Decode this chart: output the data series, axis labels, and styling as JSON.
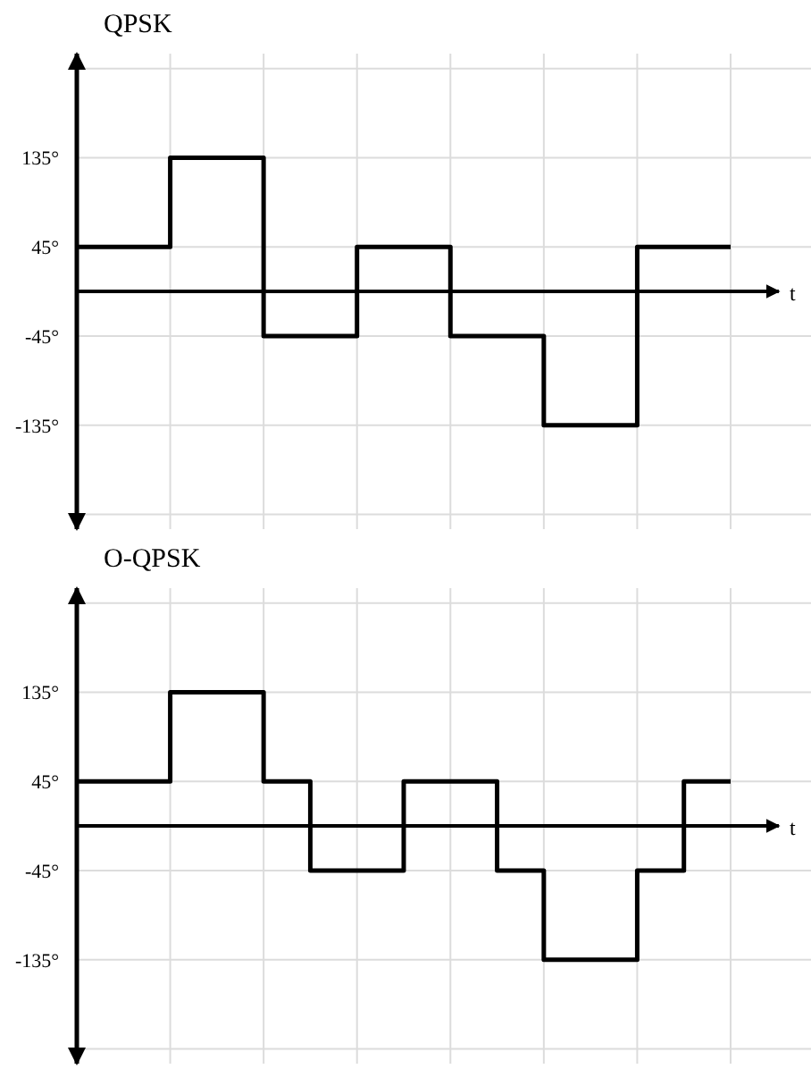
{
  "chart_data": [
    {
      "type": "step",
      "title": "QPSK",
      "xlabel": "t",
      "categories": [
        null,
        null,
        null,
        null,
        null,
        null,
        null,
        null
      ],
      "series": [
        {
          "color": "#000000",
          "values": [
            45,
            135,
            -45,
            45,
            -45,
            -135,
            45,
            45
          ]
        }
      ],
      "ylim": [
        -240,
        240
      ],
      "yticks": [
        {
          "value": -225,
          "label": null
        },
        {
          "value": -135,
          "label": "-135°"
        },
        {
          "value": -45,
          "label": "-45°"
        },
        {
          "value": 45,
          "label": "45°"
        },
        {
          "value": 135,
          "label": "135°"
        },
        {
          "value": 225,
          "label": null
        }
      ],
      "grid": true
    },
    {
      "type": "step",
      "title": "O-QPSK",
      "xlabel": "t",
      "categories": [
        null,
        null,
        null,
        null,
        null,
        null,
        null,
        null,
        null,
        null,
        null,
        null,
        null,
        null,
        null
      ],
      "series": [
        {
          "color": "#000000",
          "values": [
            45,
            45,
            135,
            135,
            45,
            -45,
            -45,
            45,
            45,
            -45,
            -135,
            -135,
            -45,
            45,
            45
          ]
        }
      ],
      "ylim": [
        -240,
        240
      ],
      "yticks": [
        {
          "value": -225,
          "label": null
        },
        {
          "value": -135,
          "label": "-135°"
        },
        {
          "value": -45,
          "label": "-45°"
        },
        {
          "value": 45,
          "label": "45°"
        },
        {
          "value": 135,
          "label": "135°"
        },
        {
          "value": 225,
          "label": null
        }
      ],
      "grid": true
    }
  ]
}
